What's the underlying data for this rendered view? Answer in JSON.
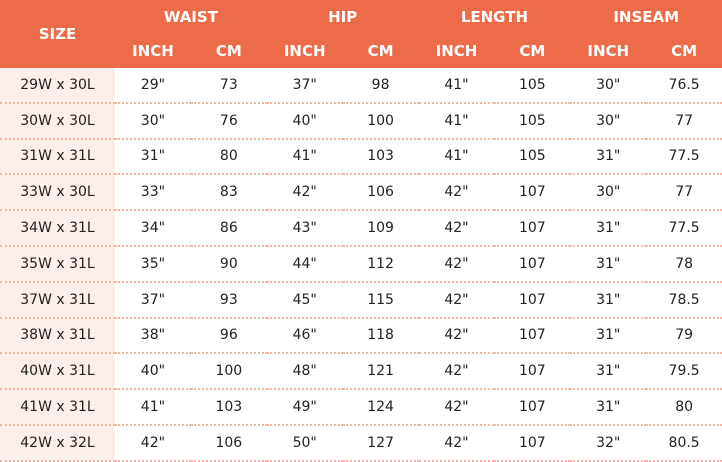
{
  "header": {
    "size": "SIZE",
    "groups": [
      "WAIST",
      "HIP",
      "LENGTH",
      "INSEAM"
    ],
    "units": [
      "INCH",
      "CM",
      "INCH",
      "CM",
      "INCH",
      "CM",
      "INCH",
      "CM"
    ]
  },
  "colors": {
    "header_bg": "#EC6B48",
    "size_col_bg": "#FCEFEA",
    "divider": "#F6B6A6"
  },
  "rows": [
    [
      "29W x 30L",
      "29\"",
      "73",
      "37\"",
      "98",
      "41\"",
      "105",
      "30\"",
      "76.5"
    ],
    [
      "30W x 30L",
      "30\"",
      "76",
      "40\"",
      "100",
      "41\"",
      "105",
      "30\"",
      "77"
    ],
    [
      "31W x 31L",
      "31\"",
      "80",
      "41\"",
      "103",
      "41\"",
      "105",
      "31\"",
      "77.5"
    ],
    [
      "33W x 30L",
      "33\"",
      "83",
      "42\"",
      "106",
      "42\"",
      "107",
      "30\"",
      "77"
    ],
    [
      "34W x 31L",
      "34\"",
      "86",
      "43\"",
      "109",
      "42\"",
      "107",
      "31\"",
      "77.5"
    ],
    [
      "35W x 31L",
      "35\"",
      "90",
      "44\"",
      "112",
      "42\"",
      "107",
      "31\"",
      "78"
    ],
    [
      "37W x 31L",
      "37\"",
      "93",
      "45\"",
      "115",
      "42\"",
      "107",
      "31\"",
      "78.5"
    ],
    [
      "38W x 31L",
      "38\"",
      "96",
      "46\"",
      "118",
      "42\"",
      "107",
      "31\"",
      "79"
    ],
    [
      "40W x 31L",
      "40\"",
      "100",
      "48\"",
      "121",
      "42\"",
      "107",
      "31\"",
      "79.5"
    ],
    [
      "41W x 31L",
      "41\"",
      "103",
      "49\"",
      "124",
      "42\"",
      "107",
      "31\"",
      "80"
    ],
    [
      "42W x 32L",
      "42\"",
      "106",
      "50\"",
      "127",
      "42\"",
      "107",
      "32\"",
      "80.5"
    ]
  ]
}
